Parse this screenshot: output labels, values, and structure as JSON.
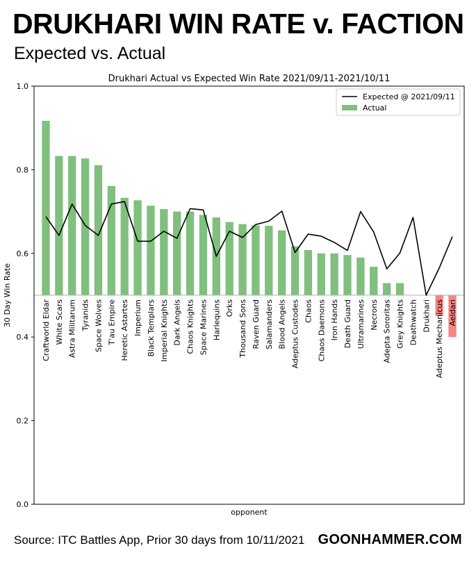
{
  "page": {
    "headline": "DRUKHARI WIN RATE v. FACTION",
    "subhead": "Expected vs. Actual",
    "source": "Source: ITC Battles App, Prior 30 days from 10/11/2021",
    "brand": "GOONHAMMER.COM"
  },
  "chart_data": {
    "type": "bar",
    "title": "Drukhari Actual vs Expected Win Rate 2021/09/11-2021/10/11",
    "xlabel": "opponent",
    "ylabel": "30 Day Win Rate",
    "ylim": [
      0.0,
      1.0
    ],
    "yticks": [
      0.0,
      0.2,
      0.4,
      0.6,
      0.8,
      1.0
    ],
    "ytick_labels": [
      "0.0",
      "0.2",
      "0.4",
      "0.6",
      "0.8",
      "1.0"
    ],
    "baseline": 0.5,
    "legend_position": "top-right",
    "categories": [
      "Craftworld Eldar",
      "White Scars",
      "Astra Militarum",
      "Tyranids",
      "Space Wolves",
      "T'au Empire",
      "Heretic Astartes",
      "Imperium",
      "Black Templars",
      "Imperial Knights",
      "Dark Angels",
      "Chaos Knights",
      "Space Marines",
      "Harlequins",
      "Orks",
      "Thousand Sons",
      "Raven Guard",
      "Salamanders",
      "Blood Angels",
      "Adeptus Custodes",
      "Chaos",
      "Chaos Daemons",
      "Iron Hands",
      "Death Guard",
      "Ultramarines",
      "Necrons",
      "Adepta Sororitas",
      "Grey Knights",
      "Deathwatch",
      "Drukhari",
      "Adeptus Mechanicus",
      "Aeldari"
    ],
    "series": [
      {
        "name": "Actual",
        "type": "bar",
        "values": [
          0.917,
          0.833,
          0.833,
          0.827,
          0.811,
          0.761,
          0.733,
          0.727,
          0.714,
          0.706,
          0.7,
          0.7,
          0.692,
          0.686,
          0.675,
          0.67,
          0.667,
          0.666,
          0.655,
          0.617,
          0.608,
          0.6,
          0.6,
          0.596,
          0.59,
          0.568,
          0.529,
          0.529,
          0.5,
          0.5,
          0.45,
          0.4
        ],
        "color_above": "#81bf7e",
        "color_below": "#f88484"
      },
      {
        "name": "Expected @ 2021/09/11",
        "type": "line",
        "values": [
          0.688,
          0.643,
          0.718,
          0.667,
          0.643,
          0.718,
          0.724,
          0.629,
          0.629,
          0.653,
          0.636,
          0.707,
          0.704,
          0.593,
          0.653,
          0.638,
          0.669,
          0.677,
          0.701,
          0.602,
          0.646,
          0.641,
          0.626,
          0.607,
          0.7,
          0.651,
          0.563,
          0.601,
          0.686,
          0.5,
          0.565,
          0.64
        ],
        "color": "#000000"
      }
    ]
  }
}
